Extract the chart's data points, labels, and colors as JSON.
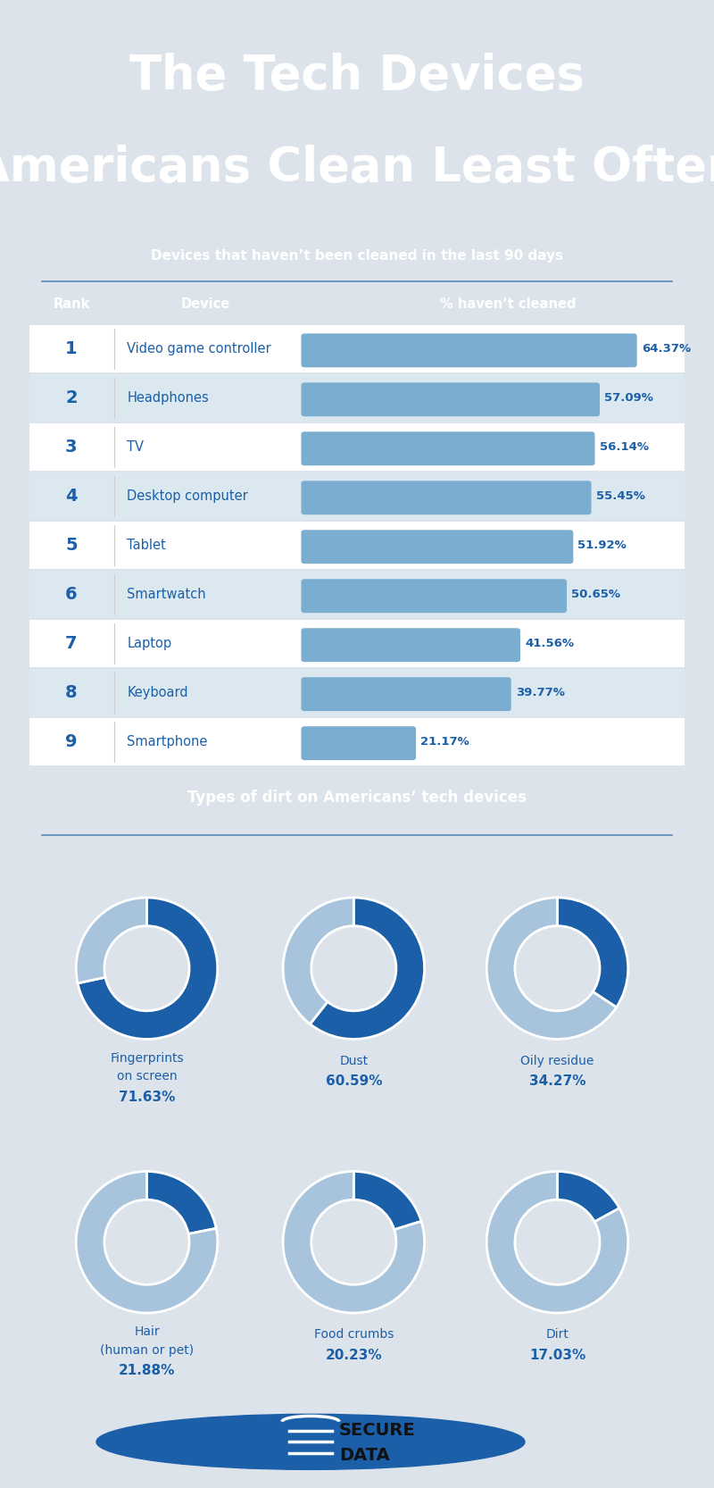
{
  "title_line1": "The Tech Devices",
  "title_line2": "Americans Clean Least Often",
  "title_bg_color": "#1a5fa8",
  "title_text_color": "#ffffff",
  "table_header": "Devices that haven’t been cleaned in the last 90 days",
  "table_header_bg": "#1a5fa8",
  "table_header_text": "#ffffff",
  "col_headers": [
    "Rank",
    "Device",
    "% haven’t cleaned"
  ],
  "ranks": [
    1,
    2,
    3,
    4,
    5,
    6,
    7,
    8,
    9
  ],
  "devices": [
    "Video game controller",
    "Headphones",
    "TV",
    "Desktop computer",
    "Tablet",
    "Smartwatch",
    "Laptop",
    "Keyboard",
    "Smartphone"
  ],
  "values": [
    64.37,
    57.09,
    56.14,
    55.45,
    51.92,
    50.65,
    41.56,
    39.77,
    21.17
  ],
  "bar_color": "#7aadcf",
  "row_bg_odd": "#ffffff",
  "row_bg_even": "#dce8f0",
  "rank_device_text": "#1a5fa8",
  "value_text_color": "#1a5fa8",
  "main_bg": "#dce3ea",
  "section_bg": "#ffffff",
  "dirt_header": "Types of dirt on Americans’ tech devices",
  "dirt_header_bg": "#1a5fa8",
  "dirt_labels": [
    "Fingerprints\non screen",
    "Dust",
    "Oily residue",
    "Hair\n(human or pet)",
    "Food crumbs",
    "Dirt"
  ],
  "dirt_values": [
    71.63,
    60.59,
    34.27,
    21.88,
    20.23,
    17.03
  ],
  "donut_main_color": "#1a5fa8",
  "donut_rest_color": "#a8c4dc",
  "donut_text_color": "#1a5fa8",
  "footer_bg": "#dce3ea",
  "line_color": "#5588bb"
}
